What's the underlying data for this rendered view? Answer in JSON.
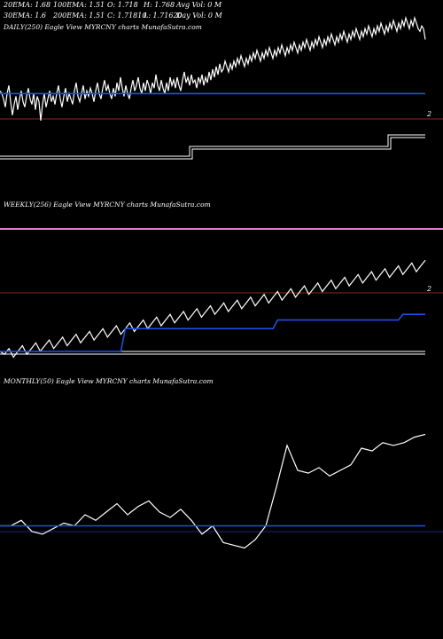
{
  "header": {
    "row1": [
      "20EMA: 1.68",
      "100EMA: 1.51",
      "O: 1.718",
      "H: 1.768",
      "Avg Vol: 0 M"
    ],
    "row2": [
      "30EMA: 1.6",
      "200EMA: 1.51",
      "C: 1.71810",
      "L: 1.71620",
      "Day Vol: 0 M"
    ]
  },
  "colors": {
    "background": "#000000",
    "price": "#ffffff",
    "ema": "#1f4fe0",
    "reference": "#8b2d1a",
    "band": "#e879c9",
    "ema_dark": "#1a237e"
  },
  "chart_data": [
    {
      "type": "line",
      "title": "DAILY(250) Eagle   View  MYRCNY charts MunafaSutra.com",
      "level_label": "2",
      "series": [
        {
          "values": [
            1.53,
            1.52,
            1.5,
            1.47,
            1.52,
            1.55,
            1.49,
            1.44,
            1.48,
            1.51,
            1.46,
            1.5,
            1.53,
            1.49,
            1.47,
            1.51,
            1.54,
            1.5,
            1.48,
            1.52,
            1.46,
            1.51,
            1.49,
            1.42,
            1.48,
            1.52,
            1.47,
            1.5,
            1.53,
            1.49,
            1.51,
            1.48,
            1.52,
            1.55,
            1.5,
            1.47,
            1.51,
            1.54,
            1.49,
            1.52,
            1.5,
            1.48,
            1.53,
            1.56,
            1.51,
            1.49,
            1.52,
            1.55,
            1.5,
            1.53,
            1.51,
            1.54,
            1.52,
            1.49,
            1.53,
            1.56,
            1.52,
            1.5,
            1.54,
            1.57,
            1.53,
            1.55,
            1.52,
            1.5,
            1.54,
            1.51,
            1.56,
            1.53,
            1.58,
            1.54,
            1.51,
            1.55,
            1.52,
            1.5,
            1.54,
            1.57,
            1.53,
            1.55,
            1.58,
            1.54,
            1.52,
            1.56,
            1.53,
            1.57,
            1.55,
            1.52,
            1.56,
            1.54,
            1.59,
            1.55,
            1.53,
            1.57,
            1.54,
            1.52,
            1.56,
            1.53,
            1.58,
            1.55,
            1.57,
            1.54,
            1.58,
            1.55,
            1.53,
            1.57,
            1.6,
            1.56,
            1.58,
            1.55,
            1.59,
            1.56,
            1.57,
            1.54,
            1.58,
            1.56,
            1.59,
            1.55,
            1.58,
            1.56,
            1.6,
            1.57,
            1.61,
            1.58,
            1.62,
            1.59,
            1.63,
            1.6,
            1.61,
            1.64,
            1.62,
            1.6,
            1.63,
            1.61,
            1.64,
            1.62,
            1.65,
            1.63,
            1.66,
            1.64,
            1.62,
            1.65,
            1.63,
            1.66,
            1.64,
            1.67,
            1.65,
            1.68,
            1.66,
            1.64,
            1.67,
            1.65,
            1.68,
            1.66,
            1.69,
            1.67,
            1.65,
            1.68,
            1.66,
            1.69,
            1.67,
            1.7,
            1.68,
            1.66,
            1.69,
            1.67,
            1.7,
            1.68,
            1.71,
            1.69,
            1.67,
            1.7,
            1.68,
            1.71,
            1.69,
            1.72,
            1.7,
            1.68,
            1.71,
            1.69,
            1.72,
            1.7,
            1.73,
            1.71,
            1.69,
            1.72,
            1.7,
            1.73,
            1.71,
            1.74,
            1.72,
            1.7,
            1.73,
            1.71,
            1.74,
            1.72,
            1.75,
            1.73,
            1.71,
            1.74,
            1.72,
            1.75,
            1.73,
            1.76,
            1.74,
            1.72,
            1.75,
            1.73,
            1.76,
            1.74,
            1.77,
            1.75,
            1.73,
            1.76,
            1.74,
            1.77,
            1.75,
            1.78,
            1.76,
            1.74,
            1.77,
            1.75,
            1.78,
            1.76,
            1.79,
            1.77,
            1.75,
            1.78,
            1.76,
            1.79,
            1.77,
            1.8,
            1.78,
            1.76,
            1.79,
            1.77,
            1.8,
            1.78,
            1.76,
            1.75,
            1.77,
            1.76,
            1.72
          ],
          "color": "#ffffff"
        },
        {
          "values": [
            1.52,
            1.52,
            1.52,
            1.52,
            1.52,
            1.52,
            1.52,
            1.52,
            1.52,
            1.52,
            1.52,
            1.52,
            1.52,
            1.52,
            1.52,
            1.52,
            1.52,
            1.52,
            1.52,
            1.52,
            1.52,
            1.52,
            1.52,
            1.52,
            1.52,
            1.52,
            1.52,
            1.52,
            1.52,
            1.52,
            1.52,
            1.52,
            1.52,
            1.52,
            1.52,
            1.52,
            1.52,
            1.52,
            1.52,
            1.52,
            1.52,
            1.52,
            1.52,
            1.52,
            1.52,
            1.52,
            1.52,
            1.52,
            1.52,
            1.52,
            1.52,
            1.52,
            1.52,
            1.52,
            1.52,
            1.52,
            1.52,
            1.52,
            1.52,
            1.52,
            1.52,
            1.52,
            1.52,
            1.52,
            1.52,
            1.52,
            1.52,
            1.52,
            1.52,
            1.52,
            1.52,
            1.52,
            1.52,
            1.52,
            1.52,
            1.52,
            1.52,
            1.52,
            1.52,
            1.52,
            1.52,
            1.52,
            1.52,
            1.52,
            1.52,
            1.52,
            1.52,
            1.52,
            1.52,
            1.52,
            1.52,
            1.52,
            1.52,
            1.52,
            1.52,
            1.52,
            1.52,
            1.52,
            1.52,
            1.52,
            1.52,
            1.52,
            1.52,
            1.52,
            1.52,
            1.52,
            1.52,
            1.52,
            1.52,
            1.52,
            1.52,
            1.52,
            1.52,
            1.52,
            1.52,
            1.52,
            1.52,
            1.52,
            1.52,
            1.52,
            1.52,
            1.52,
            1.52,
            1.52,
            1.52,
            1.52,
            1.52,
            1.52,
            1.52,
            1.52,
            1.52,
            1.52,
            1.52,
            1.52,
            1.52,
            1.52,
            1.52,
            1.52,
            1.52,
            1.52,
            1.52,
            1.52,
            1.52,
            1.52,
            1.52,
            1.52,
            1.52,
            1.52,
            1.52,
            1.52,
            1.52,
            1.52,
            1.52,
            1.52,
            1.52,
            1.52,
            1.52,
            1.52,
            1.52,
            1.52,
            1.52,
            1.52,
            1.52,
            1.52,
            1.52,
            1.52,
            1.52,
            1.52,
            1.52,
            1.52,
            1.52,
            1.52,
            1.52,
            1.52,
            1.52,
            1.52,
            1.52,
            1.52,
            1.52,
            1.52,
            1.52,
            1.52,
            1.52,
            1.52,
            1.52,
            1.52,
            1.52,
            1.52,
            1.52,
            1.52,
            1.52,
            1.52,
            1.52,
            1.52,
            1.52,
            1.52,
            1.52,
            1.52,
            1.52,
            1.52,
            1.52,
            1.52,
            1.52,
            1.52,
            1.52,
            1.52,
            1.52,
            1.52,
            1.52,
            1.52,
            1.52,
            1.52,
            1.52,
            1.52,
            1.52,
            1.52,
            1.52,
            1.52,
            1.52,
            1.52,
            1.52,
            1.52,
            1.52,
            1.52,
            1.52,
            1.52,
            1.52,
            1.52,
            1.52,
            1.52,
            1.52,
            1.52,
            1.52,
            1.52,
            1.52,
            1.52,
            1.52,
            1.52,
            1.52,
            1.52,
            1.52
          ],
          "color": "#1f4fe0"
        }
      ]
    },
    {
      "type": "line",
      "title": "WEEKLY(256) Eagle   View  MYRCNY charts MunafaSutra.com",
      "level_label": "2",
      "series": [
        {
          "values": [
            1.47,
            1.46,
            1.48,
            1.45,
            1.47,
            1.49,
            1.46,
            1.48,
            1.5,
            1.47,
            1.49,
            1.51,
            1.48,
            1.5,
            1.52,
            1.49,
            1.51,
            1.53,
            1.5,
            1.52,
            1.54,
            1.51,
            1.53,
            1.55,
            1.52,
            1.54,
            1.56,
            1.53,
            1.55,
            1.57,
            1.54,
            1.56,
            1.58,
            1.55,
            1.57,
            1.59,
            1.56,
            1.58,
            1.6,
            1.57,
            1.59,
            1.61,
            1.58,
            1.6,
            1.62,
            1.59,
            1.61,
            1.63,
            1.6,
            1.62,
            1.64,
            1.61,
            1.63,
            1.65,
            1.62,
            1.64,
            1.66,
            1.63,
            1.65,
            1.67,
            1.64,
            1.66,
            1.68,
            1.65,
            1.67,
            1.69,
            1.66,
            1.68,
            1.7,
            1.67,
            1.69,
            1.71,
            1.68,
            1.7,
            1.72,
            1.69,
            1.71,
            1.73,
            1.7,
            1.72,
            1.74,
            1.71,
            1.73,
            1.75,
            1.72,
            1.74,
            1.76,
            1.73,
            1.75,
            1.77,
            1.74,
            1.76,
            1.78,
            1.75,
            1.77,
            1.79
          ],
          "color": "#ffffff"
        },
        {
          "values": [
            1.47,
            1.47,
            1.47,
            1.47,
            1.47,
            1.47,
            1.47,
            1.47,
            1.47,
            1.47,
            1.47,
            1.47,
            1.47,
            1.47,
            1.47,
            1.47,
            1.47,
            1.47,
            1.47,
            1.47,
            1.47,
            1.47,
            1.47,
            1.47,
            1.47,
            1.47,
            1.47,
            1.47,
            1.55,
            1.55,
            1.55,
            1.55,
            1.55,
            1.55,
            1.55,
            1.55,
            1.55,
            1.55,
            1.55,
            1.55,
            1.55,
            1.55,
            1.55,
            1.55,
            1.55,
            1.55,
            1.55,
            1.55,
            1.55,
            1.55,
            1.55,
            1.55,
            1.55,
            1.55,
            1.55,
            1.55,
            1.55,
            1.55,
            1.55,
            1.55,
            1.55,
            1.55,
            1.58,
            1.58,
            1.58,
            1.58,
            1.58,
            1.58,
            1.58,
            1.58,
            1.58,
            1.58,
            1.58,
            1.58,
            1.58,
            1.58,
            1.58,
            1.58,
            1.58,
            1.58,
            1.58,
            1.58,
            1.58,
            1.58,
            1.58,
            1.58,
            1.58,
            1.58,
            1.58,
            1.58,
            1.6,
            1.6,
            1.6,
            1.6,
            1.6,
            1.6
          ],
          "color": "#1f4fe0"
        }
      ]
    },
    {
      "type": "line",
      "title": "MONTHLY(50) Eagle   View  MYRCNY charts MunafaSutra.com",
      "series": [
        {
          "values": [
            1.48,
            1.48,
            1.5,
            1.46,
            1.45,
            1.47,
            1.49,
            1.48,
            1.52,
            1.5,
            1.53,
            1.56,
            1.52,
            1.55,
            1.57,
            1.53,
            1.51,
            1.54,
            1.5,
            1.45,
            1.48,
            1.42,
            1.41,
            1.4,
            1.43,
            1.48,
            1.62,
            1.77,
            1.68,
            1.67,
            1.69,
            1.66,
            1.68,
            1.7,
            1.76,
            1.75,
            1.78,
            1.77,
            1.78,
            1.8,
            1.81
          ],
          "color": "#ffffff"
        },
        {
          "values": [
            1.48,
            1.48,
            1.48,
            1.48,
            1.48,
            1.48,
            1.48,
            1.48,
            1.48,
            1.48,
            1.48,
            1.48,
            1.48,
            1.48,
            1.48,
            1.48,
            1.48,
            1.48,
            1.48,
            1.48,
            1.48,
            1.48,
            1.48,
            1.48,
            1.48,
            1.48,
            1.48,
            1.48,
            1.48,
            1.48,
            1.48,
            1.48,
            1.48,
            1.48,
            1.48,
            1.48,
            1.48,
            1.48,
            1.48,
            1.48,
            1.48
          ],
          "color": "#1f4fe0"
        }
      ]
    }
  ]
}
